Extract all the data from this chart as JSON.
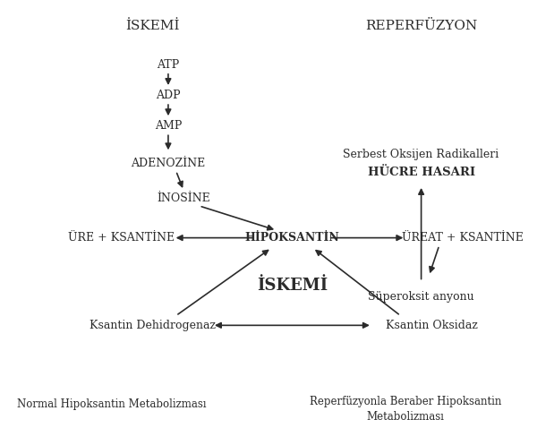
{
  "bg_color": "#ffffff",
  "text_color": "#2b2b2b",
  "title_iskemi": "İSKEMİ",
  "title_reperfuzyon": "REPERFÜZYON",
  "atp": "ATP",
  "adp": "ADP",
  "amp": "AMP",
  "adenozine": "ADENOZİNE",
  "inosine": "İNOSİNE",
  "hipoksantin": "HİPOKSANTİN",
  "ure": "ÜRE + KSANTİNE",
  "ureat": "ÜREAT + KSANTİNE",
  "superoksit": "Süperoksit anyonu",
  "serbest_line1": "Serbest Oksijen Radikalleri",
  "serbest_line2": "HÜCRE HASARI",
  "iskemi_bold": "İSKEMİ",
  "ksantin_dehid": "Ksantin Dehidrogenaz",
  "ksantin_oks": "Ksantin Oksidaz",
  "bottom_left": "Normal Hipoksantin Metabolizması",
  "bottom_right_line1": "Reperfüzyonla Beraber Hipoksantin",
  "bottom_right_line2": "Metabolizması",
  "font_size_main": 9,
  "font_size_bold": 11,
  "font_size_bottom": 8.5
}
